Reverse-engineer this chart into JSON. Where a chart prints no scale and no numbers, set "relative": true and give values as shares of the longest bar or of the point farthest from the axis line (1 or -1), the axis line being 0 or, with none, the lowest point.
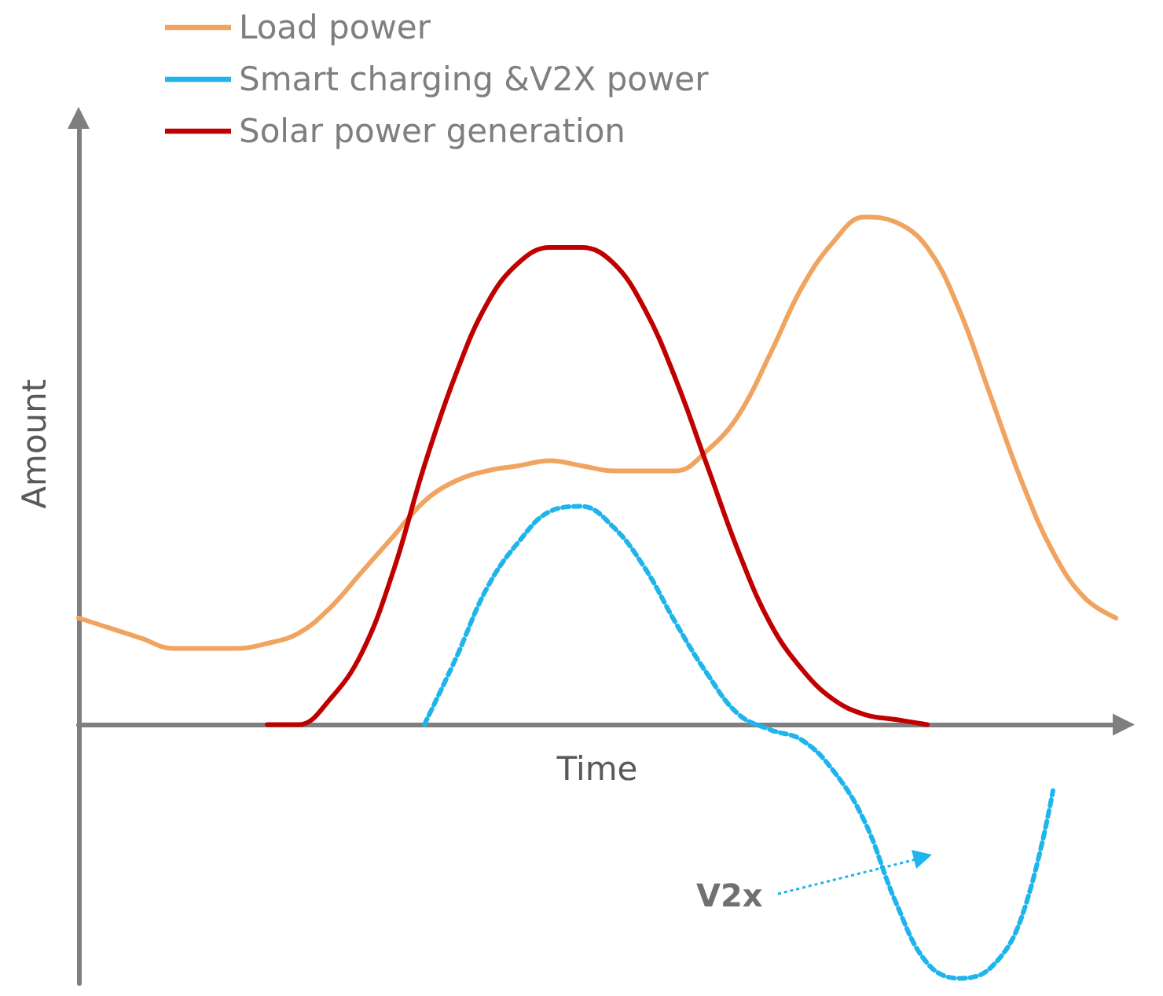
{
  "chart_data": {
    "type": "line",
    "relative": true,
    "xlabel": "Time",
    "ylabel": "Amount",
    "legend": "top left",
    "marker": "none",
    "categories": [
      null,
      null,
      null,
      null,
      null,
      null,
      null,
      null,
      null,
      null,
      null,
      null,
      null,
      null,
      null,
      null,
      null,
      null,
      null,
      null,
      null,
      null,
      null,
      null,
      null,
      null,
      null,
      null,
      null,
      null,
      null,
      null,
      null,
      null
    ],
    "series": [
      {
        "name": "Load power",
        "color": "#f0a45f",
        "line_style": "solid",
        "values": [
          0.21,
          0.19,
          0.17,
          0.15,
          0.15,
          0.15,
          0.16,
          0.18,
          0.23,
          0.3,
          0.37,
          0.44,
          0.48,
          0.5,
          0.51,
          0.52,
          0.51,
          0.5,
          0.5,
          0.5,
          0.54,
          0.61,
          0.73,
          0.86,
          0.95,
          1.0,
          0.99,
          0.94,
          0.82,
          0.65,
          0.48,
          0.34,
          0.25,
          0.21
        ]
      },
      {
        "name": "Smart charging &V2X power",
        "color": "#1eb4ec",
        "line_style": "dashed",
        "values": [
          null,
          null,
          null,
          null,
          null,
          null,
          null,
          null,
          null,
          null,
          null,
          0,
          0.13,
          0.27,
          0.36,
          0.42,
          0.43,
          0.39,
          0.31,
          0.2,
          0.1,
          0.02,
          -0.01,
          -0.03,
          -0.09,
          -0.19,
          -0.35,
          -0.47,
          -0.5,
          -0.48,
          -0.38,
          -0.13,
          null,
          null
        ]
      },
      {
        "name": "Solar power generation",
        "color": "#c00000",
        "line_style": "solid",
        "values": [
          null,
          null,
          null,
          null,
          null,
          null,
          0,
          0,
          0.05,
          0.14,
          0.3,
          0.51,
          0.69,
          0.83,
          0.91,
          0.94,
          0.94,
          0.91,
          0.82,
          0.68,
          0.51,
          0.34,
          0.2,
          0.11,
          0.05,
          0.02,
          0.01,
          0,
          null,
          null,
          null,
          null,
          null,
          null
        ]
      }
    ],
    "annotations": [
      "V2x"
    ]
  }
}
